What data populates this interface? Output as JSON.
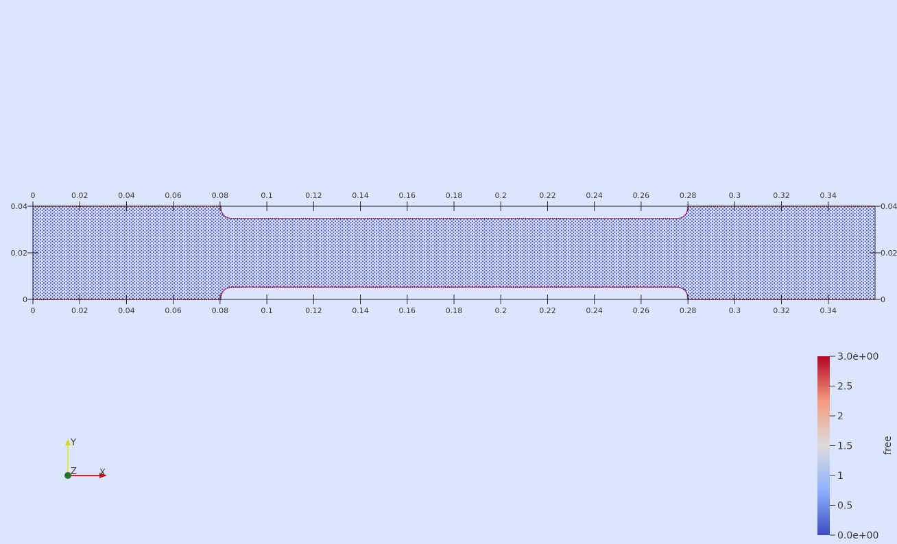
{
  "x_axis": {
    "ticks": [
      {
        "value": 0,
        "label": "0"
      },
      {
        "value": 0.02,
        "label": "0.02"
      },
      {
        "value": 0.04,
        "label": "0.04"
      },
      {
        "value": 0.06,
        "label": "0.06"
      },
      {
        "value": 0.08,
        "label": "0.08"
      },
      {
        "value": 0.1,
        "label": "0.1"
      },
      {
        "value": 0.12,
        "label": "0.12"
      },
      {
        "value": 0.14,
        "label": "0.14"
      },
      {
        "value": 0.16,
        "label": "0.16"
      },
      {
        "value": 0.18,
        "label": "0.18"
      },
      {
        "value": 0.2,
        "label": "0.2"
      },
      {
        "value": 0.22,
        "label": "0.22"
      },
      {
        "value": 0.24,
        "label": "0.24"
      },
      {
        "value": 0.26,
        "label": "0.26"
      },
      {
        "value": 0.28,
        "label": "0.28"
      },
      {
        "value": 0.3,
        "label": "0.3"
      },
      {
        "value": 0.32,
        "label": "0.32"
      },
      {
        "value": 0.34,
        "label": "0.34"
      }
    ],
    "range": [
      0,
      0.36
    ]
  },
  "y_axis": {
    "ticks": [
      {
        "value": 0,
        "label": "0"
      },
      {
        "value": 0.02,
        "label": "0.02"
      },
      {
        "value": 0.04,
        "label": "0.04"
      }
    ],
    "range": [
      0,
      0.04
    ]
  },
  "domain_geometry": {
    "channel_y_range": [
      0.005,
      0.035
    ],
    "constriction_x_range": [
      0.08,
      0.28
    ]
  },
  "colorbar": {
    "title": "free",
    "min_label": "0.0e+00",
    "max_label": "3.0e+00",
    "range": [
      0,
      3
    ],
    "labels": [
      {
        "value": 3,
        "text": "3.0e+00"
      },
      {
        "value": 2.5,
        "text": "2.5"
      },
      {
        "value": 2,
        "text": "2"
      },
      {
        "value": 1.5,
        "text": "1.5"
      },
      {
        "value": 1,
        "text": "1"
      },
      {
        "value": 0.5,
        "text": "0.5"
      },
      {
        "value": 0,
        "text": "0.0e+00"
      }
    ],
    "colors": [
      "#3b4cc0",
      "#8db0fe",
      "#dddcdc",
      "#f49a7b",
      "#b40426"
    ]
  },
  "orientation_axes": {
    "y": "Y",
    "z": "Z",
    "x": "X"
  },
  "colors": {
    "background": "#dbe5ff",
    "particle": "#4a58c8",
    "wall": "#c0143c",
    "grid": "#222222"
  }
}
